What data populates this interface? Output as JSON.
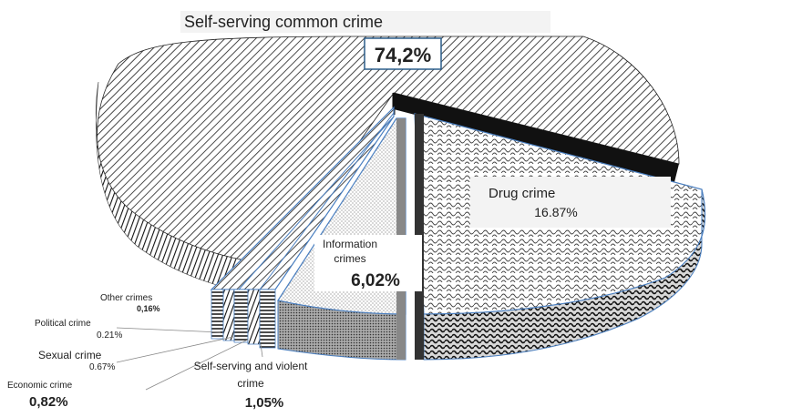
{
  "chart_data": {
    "type": "pie",
    "variant": "3d-exploded",
    "slices": [
      {
        "key": "self_serving_common",
        "label": "Self-serving common crime",
        "value_text": "74,2%",
        "value": 74.2
      },
      {
        "key": "drug",
        "label": "Drug crime",
        "value_text": "16.87%",
        "value": 16.87
      },
      {
        "key": "information",
        "label_lines": [
          "Information",
          "crimes"
        ],
        "value_text": "6,02%",
        "value": 6.02
      },
      {
        "key": "self_serving_violent",
        "label_lines": [
          "Self-serving and violent",
          "crime"
        ],
        "value_text": "1,05%",
        "value": 1.05
      },
      {
        "key": "economic",
        "label": "Economic crime",
        "value_text": "0,82%",
        "value": 0.82
      },
      {
        "key": "sexual",
        "label": "Sexual crime",
        "value_text": "0.67%",
        "value": 0.67
      },
      {
        "key": "political",
        "label": "Political crime",
        "value_text": "0.21%",
        "value": 0.21
      },
      {
        "key": "other",
        "label": "Other crimes",
        "value_text": "0,16%",
        "value": 0.16
      }
    ],
    "legend": "none",
    "grid": false
  }
}
